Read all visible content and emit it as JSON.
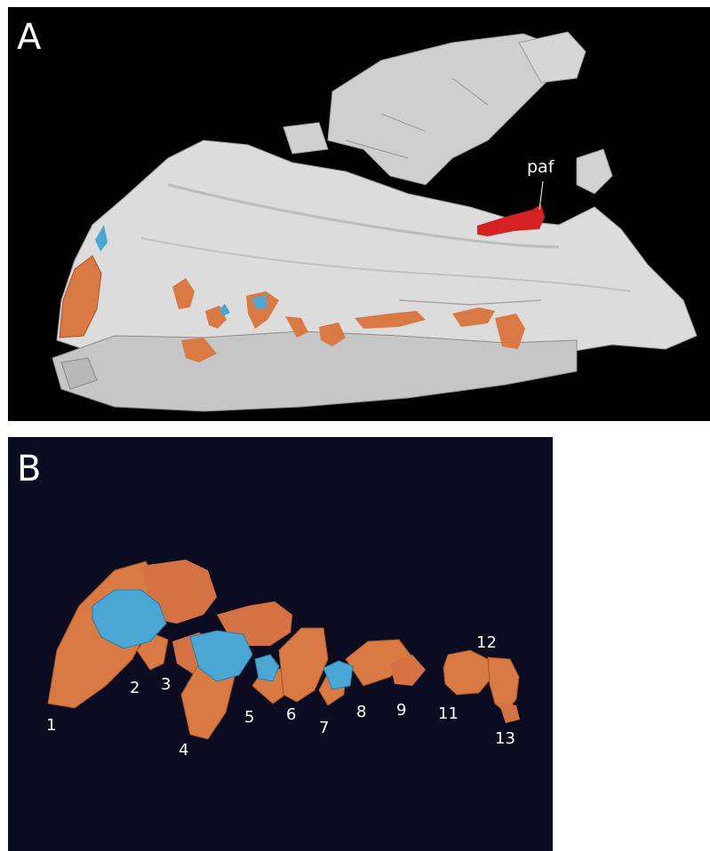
{
  "figure": {
    "panels": [
      {
        "letter": "A",
        "annotation": "paf"
      },
      {
        "letter": "B",
        "tooth_labels": [
          "1",
          "2",
          "3",
          "4",
          "5",
          "6",
          "7",
          "8",
          "9",
          "11",
          "12",
          "13"
        ]
      }
    ]
  },
  "colors": {
    "panel_a_background": "#000000",
    "panel_b_background": "#0b0b22",
    "bone": "#dcdcdc",
    "tooth": "#d97a45",
    "replacement_tooth": "#4aa6d3",
    "paf_highlight": "#d42222",
    "text": "#ffffff"
  }
}
